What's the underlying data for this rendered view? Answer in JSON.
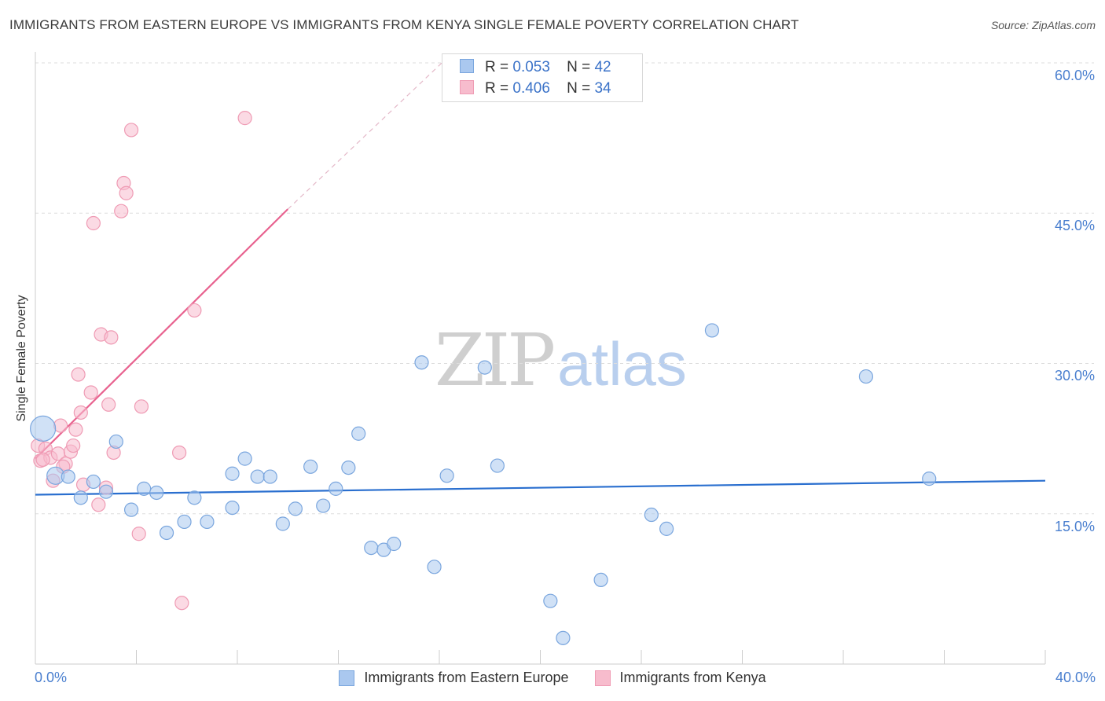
{
  "title": "IMMIGRANTS FROM EASTERN EUROPE VS IMMIGRANTS FROM KENYA SINGLE FEMALE POVERTY CORRELATION CHART",
  "source": "Source: ZipAtlas.com",
  "watermark": {
    "zip": "ZIP",
    "atlas": "atlas"
  },
  "colors": {
    "blue_fill": "#aac8ef",
    "blue_stroke": "#7aa6de",
    "blue_line": "#2a6fcf",
    "pink_fill": "#f7bccd",
    "pink_stroke": "#ef9bb4",
    "pink_line": "#e8628f",
    "grid": "#dddddd",
    "tick_text": "#4a7fcf"
  },
  "stats": {
    "r_label": "R =",
    "n_label": "N =",
    "rows": [
      {
        "r": "0.053",
        "n": "42"
      },
      {
        "r": "0.406",
        "n": "34"
      }
    ]
  },
  "chart_data": {
    "type": "scatter",
    "title": "IMMIGRANTS FROM EASTERN EUROPE VS IMMIGRANTS FROM KENYA SINGLE FEMALE POVERTY CORRELATION CHART",
    "xlabel": "",
    "ylabel": "Single Female Poverty",
    "xlim": [
      0,
      40
    ],
    "ylim": [
      0,
      60
    ],
    "x_tick_labels": [
      "0.0%",
      "40.0%"
    ],
    "y_ticks": [
      {
        "value": 15,
        "label": "15.0%"
      },
      {
        "value": 30,
        "label": "30.0%"
      },
      {
        "value": 45,
        "label": "45.0%"
      },
      {
        "value": 60,
        "label": "60.0%"
      }
    ],
    "series": [
      {
        "name": "Immigrants from Eastern Europe",
        "color": "blue",
        "trend": {
          "x": [
            0,
            40
          ],
          "y": [
            16.9,
            18.3
          ],
          "dashed_extension": false
        },
        "points": [
          {
            "x": 0.3,
            "y": 23.5,
            "big": true
          },
          {
            "x": 0.8,
            "y": 18.8,
            "big": false
          },
          {
            "x": 1.3,
            "y": 18.7
          },
          {
            "x": 1.8,
            "y": 16.6
          },
          {
            "x": 2.3,
            "y": 18.2
          },
          {
            "x": 2.8,
            "y": 17.2
          },
          {
            "x": 3.2,
            "y": 22.2
          },
          {
            "x": 3.8,
            "y": 15.4
          },
          {
            "x": 4.3,
            "y": 17.5
          },
          {
            "x": 4.8,
            "y": 17.1
          },
          {
            "x": 5.2,
            "y": 13.1
          },
          {
            "x": 5.9,
            "y": 14.2
          },
          {
            "x": 6.3,
            "y": 16.6
          },
          {
            "x": 6.8,
            "y": 14.2
          },
          {
            "x": 7.8,
            "y": 19.0
          },
          {
            "x": 7.8,
            "y": 15.6
          },
          {
            "x": 8.3,
            "y": 20.5
          },
          {
            "x": 8.8,
            "y": 18.7
          },
          {
            "x": 9.3,
            "y": 18.7
          },
          {
            "x": 9.8,
            "y": 14.0
          },
          {
            "x": 10.3,
            "y": 15.5
          },
          {
            "x": 10.9,
            "y": 19.7
          },
          {
            "x": 11.4,
            "y": 15.8
          },
          {
            "x": 11.9,
            "y": 17.5
          },
          {
            "x": 12.4,
            "y": 19.6
          },
          {
            "x": 12.8,
            "y": 23.0
          },
          {
            "x": 13.3,
            "y": 11.6
          },
          {
            "x": 13.8,
            "y": 11.4
          },
          {
            "x": 14.2,
            "y": 12.0
          },
          {
            "x": 15.3,
            "y": 30.1
          },
          {
            "x": 15.8,
            "y": 9.7
          },
          {
            "x": 16.3,
            "y": 18.8
          },
          {
            "x": 17.8,
            "y": 29.6
          },
          {
            "x": 18.3,
            "y": 19.8
          },
          {
            "x": 20.4,
            "y": 6.3
          },
          {
            "x": 20.9,
            "y": 2.6
          },
          {
            "x": 22.4,
            "y": 8.4
          },
          {
            "x": 24.4,
            "y": 14.9
          },
          {
            "x": 25.0,
            "y": 13.5
          },
          {
            "x": 26.8,
            "y": 33.3
          },
          {
            "x": 32.9,
            "y": 28.7
          },
          {
            "x": 35.4,
            "y": 18.5
          }
        ]
      },
      {
        "name": "Immigrants from Kenya",
        "color": "pink",
        "trend": {
          "x": [
            0,
            10.0
          ],
          "y": [
            20.5,
            45.4
          ],
          "dashed_to": [
            16.1,
            60.0
          ]
        },
        "points": [
          {
            "x": 0.1,
            "y": 21.8
          },
          {
            "x": 0.2,
            "y": 20.3
          },
          {
            "x": 0.4,
            "y": 21.5
          },
          {
            "x": 0.6,
            "y": 20.6
          },
          {
            "x": 0.7,
            "y": 18.3
          },
          {
            "x": 0.9,
            "y": 21.0
          },
          {
            "x": 1.0,
            "y": 23.8
          },
          {
            "x": 1.2,
            "y": 20.0
          },
          {
            "x": 1.4,
            "y": 21.2
          },
          {
            "x": 1.5,
            "y": 21.8
          },
          {
            "x": 1.6,
            "y": 23.4
          },
          {
            "x": 1.7,
            "y": 28.9
          },
          {
            "x": 1.8,
            "y": 25.1
          },
          {
            "x": 1.9,
            "y": 17.9
          },
          {
            "x": 2.2,
            "y": 27.1
          },
          {
            "x": 2.3,
            "y": 44.0
          },
          {
            "x": 2.5,
            "y": 15.9
          },
          {
            "x": 2.6,
            "y": 32.9
          },
          {
            "x": 2.8,
            "y": 17.6
          },
          {
            "x": 2.9,
            "y": 25.9
          },
          {
            "x": 3.0,
            "y": 32.6
          },
          {
            "x": 3.1,
            "y": 21.1
          },
          {
            "x": 3.4,
            "y": 45.2
          },
          {
            "x": 3.5,
            "y": 48.0
          },
          {
            "x": 3.6,
            "y": 47.0
          },
          {
            "x": 3.8,
            "y": 53.3
          },
          {
            "x": 4.1,
            "y": 13.0
          },
          {
            "x": 4.2,
            "y": 25.7
          },
          {
            "x": 5.7,
            "y": 21.1
          },
          {
            "x": 5.8,
            "y": 6.1
          },
          {
            "x": 6.3,
            "y": 35.3
          },
          {
            "x": 8.3,
            "y": 54.5
          },
          {
            "x": 0.3,
            "y": 20.4
          },
          {
            "x": 1.1,
            "y": 19.7
          }
        ]
      }
    ],
    "legend": [
      "Immigrants from Eastern Europe",
      "Immigrants from Kenya"
    ],
    "legend_placement": "bottom-center",
    "grid": true
  }
}
